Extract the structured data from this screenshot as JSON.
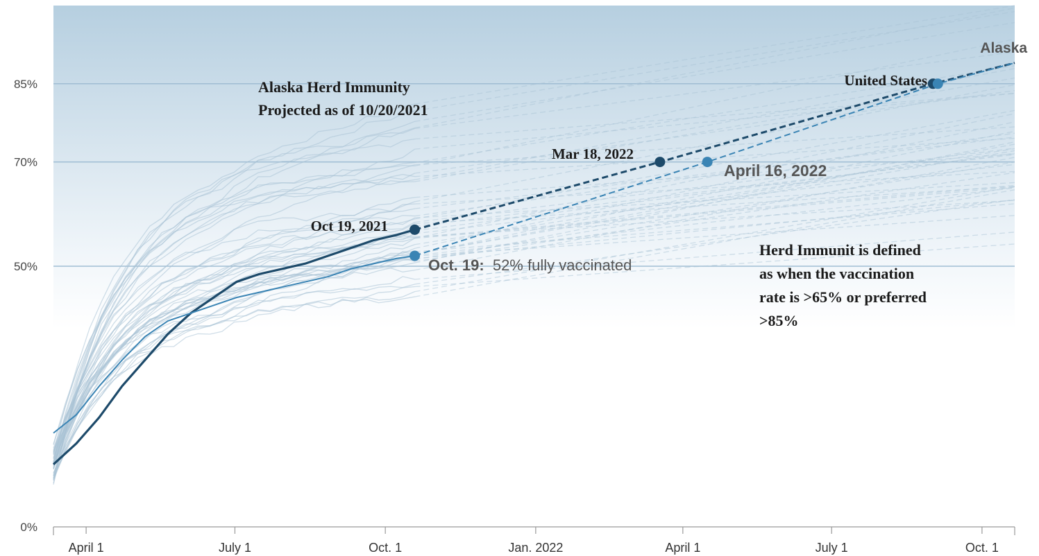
{
  "chart_data": {
    "type": "line",
    "title": "Alaska Herd Immunity",
    "subtitle": "Projected as of 10/20/2021",
    "xlabel": "",
    "ylabel": "",
    "x_ticks": [
      "April 1",
      "July 1",
      "Oct. 1",
      "Jan. 2022",
      "April 1",
      "July 1",
      "Oct. 1"
    ],
    "x_tick_dates": [
      "2021-04-01",
      "2021-07-01",
      "2021-10-01",
      "2022-01-01",
      "2022-04-01",
      "2022-07-01",
      "2022-10-01"
    ],
    "xlim": [
      "2021-03-12",
      "2022-10-21"
    ],
    "y_ticks": [
      "0%",
      "50%",
      "70%",
      "85%"
    ],
    "y_tick_values": [
      0,
      50,
      70,
      85
    ],
    "ylim": [
      0,
      100
    ],
    "grid": "horizontal lines at 50%, 70% and 85%",
    "series": [
      {
        "name": "United States",
        "color": "#1d4a6a",
        "actual": [
          {
            "x": "2021-03-12",
            "y": 12
          },
          {
            "x": "2021-03-26",
            "y": 16
          },
          {
            "x": "2021-04-09",
            "y": 21
          },
          {
            "x": "2021-04-23",
            "y": 27
          },
          {
            "x": "2021-05-07",
            "y": 32
          },
          {
            "x": "2021-05-21",
            "y": 37
          },
          {
            "x": "2021-06-04",
            "y": 41
          },
          {
            "x": "2021-06-18",
            "y": 44
          },
          {
            "x": "2021-07-02",
            "y": 47
          },
          {
            "x": "2021-07-16",
            "y": 48.5
          },
          {
            "x": "2021-07-30",
            "y": 49.5
          },
          {
            "x": "2021-08-13",
            "y": 50.5
          },
          {
            "x": "2021-08-27",
            "y": 52
          },
          {
            "x": "2021-09-10",
            "y": 53.5
          },
          {
            "x": "2021-09-24",
            "y": 55
          },
          {
            "x": "2021-10-08",
            "y": 56
          },
          {
            "x": "2021-10-19",
            "y": 57
          }
        ],
        "projected": [
          {
            "x": "2021-10-19",
            "y": 57
          },
          {
            "x": "2022-03-18",
            "y": 70
          },
          {
            "x": "2022-09-01",
            "y": 85
          },
          {
            "x": "2022-10-21",
            "y": 89
          }
        ]
      },
      {
        "name": "Alaska",
        "color": "#3a84b4",
        "actual": [
          {
            "x": "2021-03-12",
            "y": 18
          },
          {
            "x": "2021-03-26",
            "y": 21.5
          },
          {
            "x": "2021-04-09",
            "y": 27
          },
          {
            "x": "2021-04-23",
            "y": 32
          },
          {
            "x": "2021-05-07",
            "y": 36.5
          },
          {
            "x": "2021-05-21",
            "y": 39.5
          },
          {
            "x": "2021-06-04",
            "y": 41
          },
          {
            "x": "2021-06-18",
            "y": 42.5
          },
          {
            "x": "2021-07-02",
            "y": 44
          },
          {
            "x": "2021-07-16",
            "y": 45
          },
          {
            "x": "2021-07-30",
            "y": 46
          },
          {
            "x": "2021-08-13",
            "y": 47
          },
          {
            "x": "2021-08-27",
            "y": 48
          },
          {
            "x": "2021-09-10",
            "y": 49.5
          },
          {
            "x": "2021-09-24",
            "y": 50.5
          },
          {
            "x": "2021-10-08",
            "y": 51.5
          },
          {
            "x": "2021-10-19",
            "y": 52
          }
        ],
        "projected": [
          {
            "x": "2021-10-19",
            "y": 52
          },
          {
            "x": "2022-04-16",
            "y": 70
          },
          {
            "x": "2022-09-04",
            "y": 85
          },
          {
            "x": "2022-10-21",
            "y": 89
          }
        ]
      }
    ],
    "background_states": {
      "count": 48,
      "note": "faint light-blue actual + dashed projected lines, one per state",
      "color": "#a9c3d6"
    },
    "annotations": [
      {
        "text": "Oct 19, 2021",
        "series": "United States",
        "x": "2021-10-19",
        "y": 57
      },
      {
        "text": "Mar 18, 2022",
        "series": "United States",
        "x": "2022-03-18",
        "y": 70
      },
      {
        "text": "United States",
        "series": "United States",
        "x": "2022-09-01",
        "y": 85
      },
      {
        "text_bold": "Oct. 19:",
        "text": "52% fully vaccinated",
        "series": "Alaska",
        "x": "2021-10-19",
        "y": 52
      },
      {
        "text": "April 16, 2022",
        "series": "Alaska",
        "x": "2022-04-16",
        "y": 70
      },
      {
        "text": "Alaska",
        "series": "Alaska",
        "x": "2022-10-21",
        "y": 89
      }
    ],
    "note_lines": [
      "Herd Immunit is defined",
      "as when the vaccination",
      "rate is >65% or preferred",
      ">85%"
    ],
    "background_gradient": [
      "#b6cfe0",
      "#ffffff"
    ]
  }
}
